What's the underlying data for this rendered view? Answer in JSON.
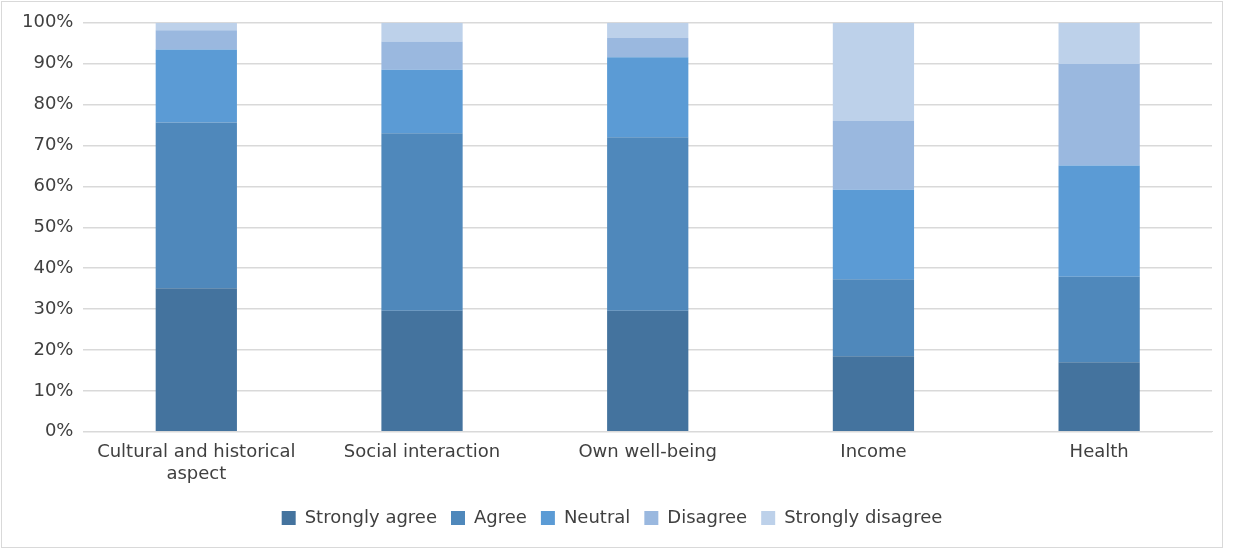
{
  "chart_data": {
    "type": "bar",
    "stacked": true,
    "categories": [
      "Cultural and historical aspect",
      "Social interaction",
      "Own well-being",
      "Income",
      "Health"
    ],
    "series": [
      {
        "name": "Strongly agree",
        "color": "#44739e",
        "values": [
          35.1,
          29.6,
          29.6,
          18.5,
          17.0
        ]
      },
      {
        "name": "Agree",
        "color": "#4f88bb",
        "values": [
          40.5,
          43.4,
          42.4,
          18.8,
          20.9
        ]
      },
      {
        "name": "Neutral",
        "color": "#5b9bd5",
        "values": [
          17.9,
          15.5,
          19.6,
          21.9,
          27.2
        ]
      },
      {
        "name": "Disagree",
        "color": "#9ab8df",
        "values": [
          4.7,
          6.9,
          4.7,
          16.8,
          24.8
        ]
      },
      {
        "name": "Strongly disagree",
        "color": "#bdd1ea",
        "values": [
          1.8,
          4.6,
          3.7,
          24.0,
          10.1
        ]
      }
    ],
    "ylim": [
      0,
      100
    ],
    "yticks": [
      {
        "value": 0,
        "label": "0%"
      },
      {
        "value": 10,
        "label": "10%"
      },
      {
        "value": 20,
        "label": "20%"
      },
      {
        "value": 30,
        "label": "30%"
      },
      {
        "value": 40,
        "label": "40%"
      },
      {
        "value": 50,
        "label": "50%"
      },
      {
        "value": 60,
        "label": "60%"
      },
      {
        "value": 70,
        "label": "70%"
      },
      {
        "value": 80,
        "label": "80%"
      },
      {
        "value": 90,
        "label": "90%"
      },
      {
        "value": 100,
        "label": "100%"
      }
    ],
    "grid": "y",
    "legend": "bottom"
  }
}
